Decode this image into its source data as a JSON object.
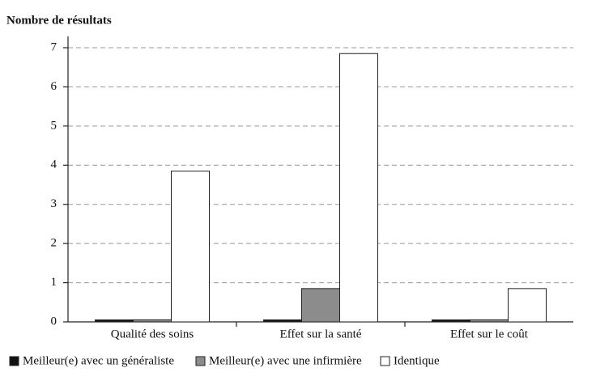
{
  "chart_data": {
    "type": "bar",
    "y_axis_label": "Nombre de résultats",
    "categories": [
      "Qualité des soins",
      "Effet sur la santé",
      "Effet sur le coût"
    ],
    "series": [
      {
        "name": "Meilleur(e) avec un généraliste",
        "color": "#111111",
        "values": [
          0.05,
          0.05,
          0.05
        ]
      },
      {
        "name": "Meilleur(e) avec une infirmière",
        "color": "#8c8c8c",
        "values": [
          0.05,
          0.85,
          0.05
        ]
      },
      {
        "name": "Identique",
        "color": "#ffffff",
        "values": [
          3.85,
          6.85,
          0.85
        ]
      }
    ],
    "ylim": [
      0,
      7
    ],
    "yticks": [
      0,
      1,
      2,
      3,
      4,
      5,
      6,
      7
    ],
    "grid": true
  }
}
